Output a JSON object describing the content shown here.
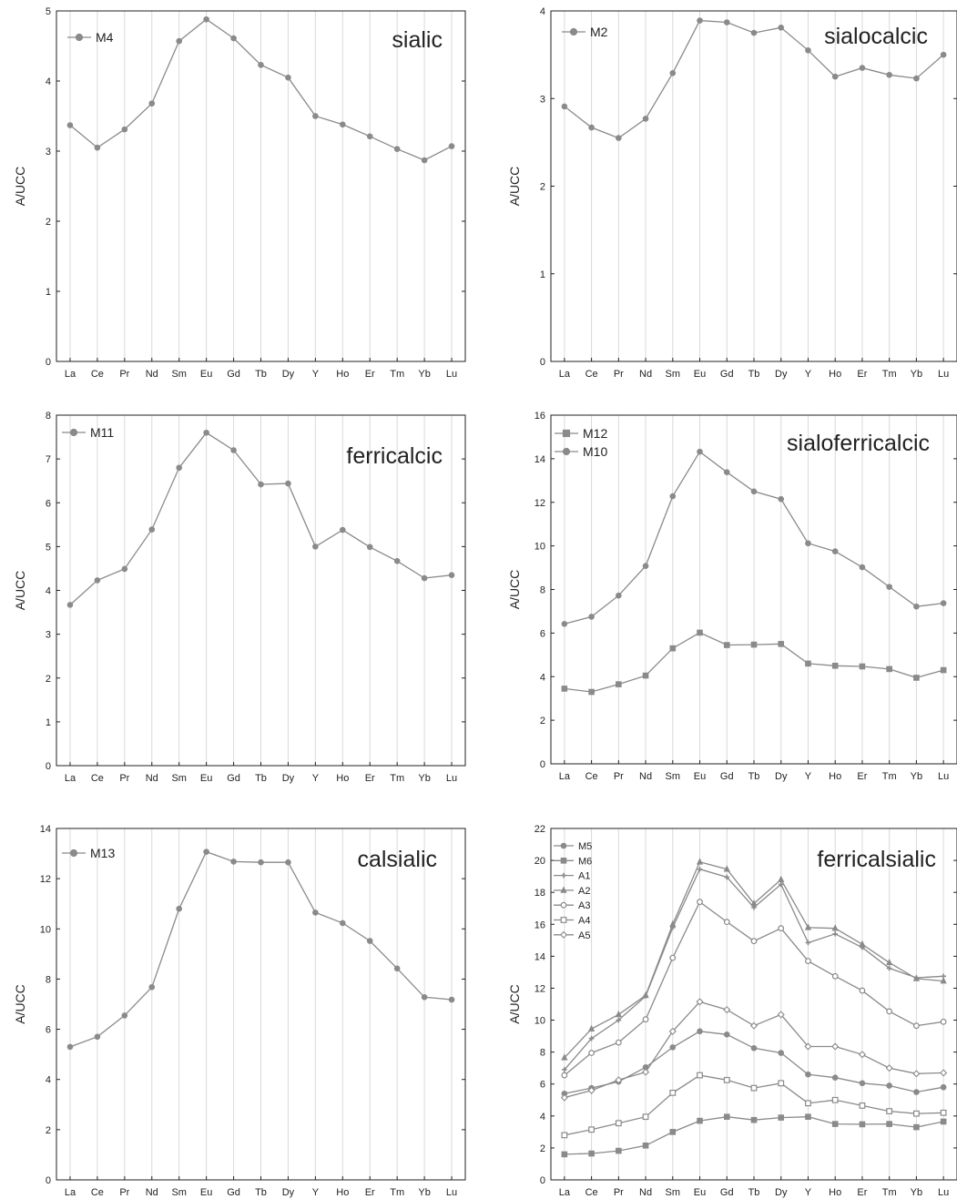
{
  "chart_data": [
    {
      "type": "line",
      "title": "sialic",
      "ylabel": "A/UCC",
      "ylim": [
        0,
        5
      ],
      "yticks": [
        0,
        1,
        2,
        3,
        4,
        5
      ],
      "categories": [
        "La",
        "Ce",
        "Pr",
        "Nd",
        "Sm",
        "Eu",
        "Gd",
        "Tb",
        "Dy",
        "Y",
        "Ho",
        "Er",
        "Tm",
        "Yb",
        "Lu"
      ],
      "legend_position": "top-left",
      "grid": true,
      "series": [
        {
          "name": "M4",
          "marker": "circle-filled",
          "values": [
            3.37,
            3.05,
            3.31,
            3.68,
            4.57,
            4.88,
            4.61,
            4.23,
            4.05,
            3.5,
            3.38,
            3.21,
            3.03,
            2.87,
            3.07
          ]
        }
      ]
    },
    {
      "type": "line",
      "title": "sialocalcic",
      "ylabel": "A/UCC",
      "ylim": [
        0,
        4
      ],
      "yticks": [
        0,
        1,
        2,
        3,
        4
      ],
      "categories": [
        "La",
        "Ce",
        "Pr",
        "Nd",
        "Sm",
        "Eu",
        "Gd",
        "Tb",
        "Dy",
        "Y",
        "Ho",
        "Er",
        "Tm",
        "Yb",
        "Lu"
      ],
      "legend_position": "top-left",
      "grid": true,
      "series": [
        {
          "name": "M2",
          "marker": "circle-filled",
          "values": [
            2.91,
            2.67,
            2.55,
            2.77,
            3.29,
            3.89,
            3.87,
            3.75,
            3.81,
            3.55,
            3.25,
            3.35,
            3.27,
            3.23,
            3.5
          ]
        }
      ]
    },
    {
      "type": "line",
      "title": "ferricalcic",
      "ylabel": "A/UCC",
      "ylim": [
        0,
        8
      ],
      "yticks": [
        0,
        1,
        2,
        3,
        4,
        5,
        6,
        7,
        8
      ],
      "categories": [
        "La",
        "Ce",
        "Pr",
        "Nd",
        "Sm",
        "Eu",
        "Gd",
        "Tb",
        "Dy",
        "Y",
        "Ho",
        "Er",
        "Tm",
        "Yb",
        "Lu"
      ],
      "legend_position": "top-left",
      "grid": true,
      "series": [
        {
          "name": "M11",
          "marker": "circle-filled",
          "values": [
            3.67,
            4.23,
            4.49,
            5.39,
            6.8,
            7.6,
            7.2,
            6.42,
            6.44,
            5.0,
            5.38,
            4.99,
            4.67,
            4.28,
            4.35
          ]
        }
      ]
    },
    {
      "type": "line",
      "title": "sialoferricalcic",
      "ylabel": "A/UCC",
      "ylim": [
        0,
        16
      ],
      "yticks": [
        0,
        2,
        4,
        6,
        8,
        10,
        12,
        14,
        16
      ],
      "categories": [
        "La",
        "Ce",
        "Pr",
        "Nd",
        "Sm",
        "Eu",
        "Gd",
        "Tb",
        "Dy",
        "Y",
        "Ho",
        "Er",
        "Tm",
        "Yb",
        "Lu"
      ],
      "legend_position": "top-left",
      "grid": true,
      "series": [
        {
          "name": "M12",
          "marker": "square-filled",
          "values": [
            3.45,
            3.3,
            3.65,
            4.05,
            5.3,
            6.02,
            5.45,
            5.47,
            5.5,
            4.6,
            4.5,
            4.47,
            4.35,
            3.95,
            4.3
          ]
        },
        {
          "name": "M10",
          "marker": "circle-filled",
          "values": [
            6.42,
            6.75,
            7.72,
            9.08,
            12.28,
            14.32,
            13.38,
            12.5,
            12.15,
            10.12,
            9.75,
            9.02,
            8.12,
            7.22,
            7.37
          ]
        }
      ]
    },
    {
      "type": "line",
      "title": "calsialic",
      "ylabel": "A/UCC",
      "ylim": [
        0,
        14
      ],
      "yticks": [
        0,
        2,
        4,
        6,
        8,
        10,
        12,
        14
      ],
      "categories": [
        "La",
        "Ce",
        "Pr",
        "Nd",
        "Sm",
        "Eu",
        "Gd",
        "Tb",
        "Dy",
        "Y",
        "Ho",
        "Er",
        "Tm",
        "Yb",
        "Lu"
      ],
      "legend_position": "top-left",
      "grid": true,
      "series": [
        {
          "name": "M13",
          "marker": "circle-filled",
          "values": [
            5.3,
            5.7,
            6.55,
            7.68,
            10.8,
            13.07,
            12.68,
            12.65,
            12.65,
            10.65,
            10.23,
            9.52,
            8.42,
            7.28,
            7.18
          ]
        }
      ]
    },
    {
      "type": "line",
      "title": "ferricalsialic",
      "ylabel": "A/UCC",
      "ylim": [
        0,
        22
      ],
      "yticks": [
        0,
        2,
        4,
        6,
        8,
        10,
        12,
        14,
        16,
        18,
        20,
        22
      ],
      "categories": [
        "La",
        "Ce",
        "Pr",
        "Nd",
        "Sm",
        "Eu",
        "Gd",
        "Tb",
        "Dy",
        "Y",
        "Ho",
        "Er",
        "Tm",
        "Yb",
        "Lu"
      ],
      "legend_position": "top-left",
      "grid": true,
      "series": [
        {
          "name": "M5",
          "marker": "circle-filled",
          "values": [
            5.4,
            5.75,
            6.15,
            7.05,
            8.3,
            9.3,
            9.1,
            8.25,
            7.95,
            6.6,
            6.4,
            6.05,
            5.9,
            5.5,
            5.8
          ]
        },
        {
          "name": "M6",
          "marker": "square-filled",
          "values": [
            1.6,
            1.65,
            1.82,
            2.15,
            3.0,
            3.7,
            3.95,
            3.75,
            3.9,
            3.95,
            3.5,
            3.48,
            3.5,
            3.3,
            3.65
          ]
        },
        {
          "name": "A1",
          "marker": "plus",
          "values": [
            6.9,
            8.85,
            10.0,
            11.5,
            15.8,
            19.45,
            18.95,
            17.05,
            18.5,
            14.85,
            15.4,
            14.55,
            13.25,
            12.65,
            12.75
          ]
        },
        {
          "name": "A2",
          "marker": "triangle-filled",
          "values": [
            7.65,
            9.45,
            10.35,
            11.55,
            16.0,
            19.9,
            19.45,
            17.3,
            18.8,
            15.8,
            15.75,
            14.75,
            13.6,
            12.6,
            12.45
          ]
        },
        {
          "name": "A3",
          "marker": "circle-open",
          "values": [
            6.55,
            7.95,
            8.6,
            10.05,
            13.9,
            17.4,
            16.15,
            14.95,
            15.75,
            13.7,
            12.75,
            11.85,
            10.55,
            9.65,
            9.9
          ]
        },
        {
          "name": "A4",
          "marker": "square-open",
          "values": [
            2.8,
            3.15,
            3.55,
            3.95,
            5.45,
            6.55,
            6.25,
            5.75,
            6.05,
            4.8,
            5.0,
            4.65,
            4.3,
            4.15,
            4.2
          ]
        },
        {
          "name": "A5",
          "marker": "diamond-open",
          "values": [
            5.15,
            5.6,
            6.25,
            6.75,
            9.3,
            11.15,
            10.65,
            9.65,
            10.35,
            8.35,
            8.35,
            7.85,
            7.0,
            6.65,
            6.7
          ]
        }
      ]
    }
  ],
  "colors": {
    "line": "#8a8a8a",
    "marker": "#8a8a8a",
    "axis": "#222222",
    "grid": "#d9d9d9",
    "background": "#ffffff"
  }
}
